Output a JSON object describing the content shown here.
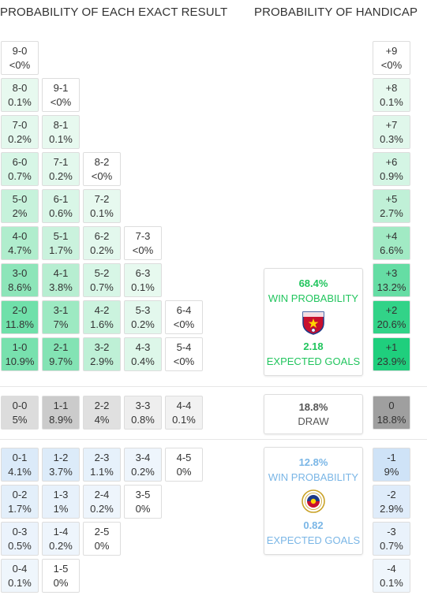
{
  "headers": {
    "exact": "PROBABILITY OF EACH EXACT RESULT",
    "handicap": "PROBABILITY OF HANDICAP"
  },
  "colors": {
    "home_win_scale": [
      "#f0fbf5",
      "#a8ebc8",
      "#1ecf7d"
    ],
    "draw_scale": [
      "#f2f2f2",
      "#9e9e9e"
    ],
    "away_win_scale": [
      "#f3f8fd",
      "#cfe3f7"
    ],
    "home_accent": "#22c55e",
    "away_accent": "#7ab6e6"
  },
  "chart_data": {
    "type": "table",
    "home_win_results": [
      {
        "score": "9-0",
        "p": 0.0,
        "label": "<0%"
      },
      {
        "score": "8-0",
        "p": 0.1,
        "label": "0.1%"
      },
      {
        "score": "9-1",
        "p": 0.0,
        "label": "<0%"
      },
      {
        "score": "7-0",
        "p": 0.2,
        "label": "0.2%"
      },
      {
        "score": "8-1",
        "p": 0.1,
        "label": "0.1%"
      },
      {
        "score": "6-0",
        "p": 0.7,
        "label": "0.7%"
      },
      {
        "score": "7-1",
        "p": 0.2,
        "label": "0.2%"
      },
      {
        "score": "8-2",
        "p": 0.0,
        "label": "<0%"
      },
      {
        "score": "5-0",
        "p": 2.0,
        "label": "2%"
      },
      {
        "score": "6-1",
        "p": 0.6,
        "label": "0.6%"
      },
      {
        "score": "7-2",
        "p": 0.1,
        "label": "0.1%"
      },
      {
        "score": "4-0",
        "p": 4.7,
        "label": "4.7%"
      },
      {
        "score": "5-1",
        "p": 1.7,
        "label": "1.7%"
      },
      {
        "score": "6-2",
        "p": 0.2,
        "label": "0.2%"
      },
      {
        "score": "7-3",
        "p": 0.0,
        "label": "<0%"
      },
      {
        "score": "3-0",
        "p": 8.6,
        "label": "8.6%"
      },
      {
        "score": "4-1",
        "p": 3.8,
        "label": "3.8%"
      },
      {
        "score": "5-2",
        "p": 0.7,
        "label": "0.7%"
      },
      {
        "score": "6-3",
        "p": 0.1,
        "label": "0.1%"
      },
      {
        "score": "2-0",
        "p": 11.8,
        "label": "11.8%"
      },
      {
        "score": "3-1",
        "p": 7.0,
        "label": "7%"
      },
      {
        "score": "4-2",
        "p": 1.6,
        "label": "1.6%"
      },
      {
        "score": "5-3",
        "p": 0.2,
        "label": "0.2%"
      },
      {
        "score": "6-4",
        "p": 0.0,
        "label": "<0%"
      },
      {
        "score": "1-0",
        "p": 10.9,
        "label": "10.9%"
      },
      {
        "score": "2-1",
        "p": 9.7,
        "label": "9.7%"
      },
      {
        "score": "3-2",
        "p": 2.9,
        "label": "2.9%"
      },
      {
        "score": "4-3",
        "p": 0.4,
        "label": "0.4%"
      },
      {
        "score": "5-4",
        "p": 0.0,
        "label": "<0%"
      }
    ],
    "draw_results": [
      {
        "score": "0-0",
        "p": 5.0,
        "label": "5%"
      },
      {
        "score": "1-1",
        "p": 8.9,
        "label": "8.9%"
      },
      {
        "score": "2-2",
        "p": 4.0,
        "label": "4%"
      },
      {
        "score": "3-3",
        "p": 0.8,
        "label": "0.8%"
      },
      {
        "score": "4-4",
        "p": 0.1,
        "label": "0.1%"
      }
    ],
    "away_win_results": [
      {
        "score": "0-1",
        "p": 4.1,
        "label": "4.1%"
      },
      {
        "score": "1-2",
        "p": 3.7,
        "label": "3.7%"
      },
      {
        "score": "2-3",
        "p": 1.1,
        "label": "1.1%"
      },
      {
        "score": "3-4",
        "p": 0.2,
        "label": "0.2%"
      },
      {
        "score": "4-5",
        "p": 0.0,
        "label": "0%"
      },
      {
        "score": "0-2",
        "p": 1.7,
        "label": "1.7%"
      },
      {
        "score": "1-3",
        "p": 1.0,
        "label": "1%"
      },
      {
        "score": "2-4",
        "p": 0.2,
        "label": "0.2%"
      },
      {
        "score": "3-5",
        "p": 0.0,
        "label": "0%"
      },
      {
        "score": "0-3",
        "p": 0.5,
        "label": "0.5%"
      },
      {
        "score": "1-4",
        "p": 0.2,
        "label": "0.2%"
      },
      {
        "score": "2-5",
        "p": 0.0,
        "label": "0%"
      },
      {
        "score": "0-4",
        "p": 0.1,
        "label": "0.1%"
      },
      {
        "score": "1-5",
        "p": 0.0,
        "label": "0%"
      }
    ],
    "handicap": [
      {
        "margin": "+9",
        "p": 0.0,
        "label": "<0%"
      },
      {
        "margin": "+8",
        "p": 0.1,
        "label": "0.1%"
      },
      {
        "margin": "+7",
        "p": 0.3,
        "label": "0.3%"
      },
      {
        "margin": "+6",
        "p": 0.9,
        "label": "0.9%"
      },
      {
        "margin": "+5",
        "p": 2.7,
        "label": "2.7%"
      },
      {
        "margin": "+4",
        "p": 6.6,
        "label": "6.6%"
      },
      {
        "margin": "+3",
        "p": 13.2,
        "label": "13.2%"
      },
      {
        "margin": "+2",
        "p": 20.6,
        "label": "20.6%"
      },
      {
        "margin": "+1",
        "p": 23.9,
        "label": "23.9%"
      },
      {
        "margin": "0",
        "p": 18.8,
        "label": "18.8%"
      },
      {
        "margin": "-1",
        "p": 9.0,
        "label": "9%"
      },
      {
        "margin": "-2",
        "p": 2.9,
        "label": "2.9%"
      },
      {
        "margin": "-3",
        "p": 0.7,
        "label": "0.7%"
      },
      {
        "margin": "-4",
        "p": 0.1,
        "label": "0.1%"
      }
    ],
    "home_summary": {
      "win_pct": "68.4%",
      "win_label": "WIN PROBABILITY",
      "xg": "2.18",
      "xg_label": "EXPECTED GOALS",
      "crest": "vietnam-football-crest"
    },
    "draw_summary": {
      "pct": "18.8%",
      "label": "DRAW"
    },
    "away_summary": {
      "win_pct": "12.8%",
      "win_label": "WIN PROBABILITY",
      "xg": "0.82",
      "xg_label": "EXPECTED GOALS",
      "crest": "philippines-football-crest"
    }
  }
}
